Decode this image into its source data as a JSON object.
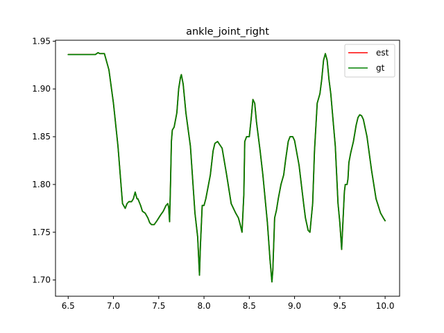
{
  "chart_data": {
    "type": "line",
    "title": "ankle_joint_right",
    "xlabel": "",
    "ylabel": "",
    "xlim": [
      6.36,
      10.16
    ],
    "ylim": [
      1.683,
      1.951
    ],
    "xticks": [
      6.5,
      7.0,
      7.5,
      8.0,
      8.5,
      9.0,
      9.5,
      10.0
    ],
    "xtick_labels": [
      "6.5",
      "7.0",
      "7.5",
      "8.0",
      "8.5",
      "9.0",
      "9.5",
      "10.0"
    ],
    "yticks": [
      1.7,
      1.75,
      1.8,
      1.85,
      1.9,
      1.95
    ],
    "ytick_labels": [
      "1.70",
      "1.75",
      "1.80",
      "1.85",
      "1.90",
      "1.95"
    ],
    "grid": false,
    "legend": {
      "position": "top-right"
    },
    "series": [
      {
        "name": "est",
        "color": "#ff0000",
        "x": [
          6.5,
          6.6,
          6.7,
          6.8,
          6.83,
          6.85,
          6.9,
          6.95,
          7.0,
          7.05,
          7.1,
          7.13,
          7.15,
          7.17,
          7.2,
          7.22,
          7.24,
          7.26,
          7.27,
          7.3,
          7.32,
          7.35,
          7.38,
          7.4,
          7.42,
          7.45,
          7.48,
          7.5,
          7.52,
          7.55,
          7.58,
          7.6,
          7.61,
          7.62,
          7.63,
          7.64,
          7.65,
          7.67,
          7.7,
          7.72,
          7.74,
          7.75,
          7.77,
          7.8,
          7.85,
          7.9,
          7.93,
          7.95,
          7.96,
          7.98,
          8.0,
          8.02,
          8.05,
          8.07,
          8.1,
          8.12,
          8.15,
          8.2,
          8.25,
          8.3,
          8.35,
          8.38,
          8.4,
          8.42,
          8.44,
          8.45,
          8.47,
          8.5,
          8.52,
          8.54,
          8.56,
          8.58,
          8.6,
          8.62,
          8.65,
          8.7,
          8.73,
          8.75,
          8.76,
          8.78,
          8.8,
          8.82,
          8.85,
          8.88,
          8.9,
          8.93,
          8.95,
          8.98,
          9.0,
          9.05,
          9.1,
          9.12,
          9.15,
          9.17,
          9.2,
          9.22,
          9.25,
          9.28,
          9.3,
          9.32,
          9.34,
          9.36,
          9.38,
          9.4,
          9.45,
          9.48,
          9.5,
          9.52,
          9.54,
          9.55,
          9.56,
          9.57,
          9.58,
          9.59,
          9.6,
          9.62,
          9.65,
          9.68,
          9.7,
          9.72,
          9.74,
          9.76,
          9.8,
          9.85,
          9.9,
          9.95,
          9.98,
          10.0
        ],
        "y": [
          1.936,
          1.936,
          1.936,
          1.936,
          1.938,
          1.937,
          1.937,
          1.92,
          1.885,
          1.84,
          1.78,
          1.775,
          1.78,
          1.782,
          1.782,
          1.785,
          1.792,
          1.785,
          1.785,
          1.778,
          1.772,
          1.77,
          1.765,
          1.76,
          1.758,
          1.758,
          1.762,
          1.765,
          1.768,
          1.772,
          1.778,
          1.78,
          1.776,
          1.761,
          1.8,
          1.845,
          1.857,
          1.86,
          1.875,
          1.9,
          1.912,
          1.915,
          1.905,
          1.875,
          1.84,
          1.77,
          1.745,
          1.705,
          1.735,
          1.778,
          1.778,
          1.785,
          1.8,
          1.81,
          1.835,
          1.843,
          1.845,
          1.838,
          1.81,
          1.78,
          1.77,
          1.765,
          1.758,
          1.75,
          1.79,
          1.845,
          1.85,
          1.85,
          1.868,
          1.889,
          1.885,
          1.865,
          1.85,
          1.835,
          1.81,
          1.76,
          1.72,
          1.698,
          1.71,
          1.765,
          1.773,
          1.785,
          1.8,
          1.81,
          1.825,
          1.845,
          1.85,
          1.85,
          1.846,
          1.82,
          1.78,
          1.765,
          1.752,
          1.75,
          1.78,
          1.835,
          1.885,
          1.895,
          1.91,
          1.93,
          1.937,
          1.93,
          1.91,
          1.895,
          1.84,
          1.78,
          1.76,
          1.732,
          1.772,
          1.792,
          1.8,
          1.8,
          1.8,
          1.806,
          1.823,
          1.833,
          1.845,
          1.862,
          1.87,
          1.873,
          1.872,
          1.868,
          1.85,
          1.815,
          1.785,
          1.77,
          1.765,
          1.762
        ]
      },
      {
        "name": "gt",
        "color": "#008000",
        "x": [
          6.5,
          6.6,
          6.7,
          6.8,
          6.83,
          6.85,
          6.9,
          6.95,
          7.0,
          7.05,
          7.1,
          7.13,
          7.15,
          7.17,
          7.2,
          7.22,
          7.24,
          7.26,
          7.27,
          7.3,
          7.32,
          7.35,
          7.38,
          7.4,
          7.42,
          7.45,
          7.48,
          7.5,
          7.52,
          7.55,
          7.58,
          7.6,
          7.61,
          7.62,
          7.63,
          7.64,
          7.65,
          7.67,
          7.7,
          7.72,
          7.74,
          7.75,
          7.77,
          7.8,
          7.85,
          7.9,
          7.93,
          7.95,
          7.96,
          7.98,
          8.0,
          8.02,
          8.05,
          8.07,
          8.1,
          8.12,
          8.15,
          8.2,
          8.25,
          8.3,
          8.35,
          8.38,
          8.4,
          8.42,
          8.44,
          8.45,
          8.47,
          8.5,
          8.52,
          8.54,
          8.56,
          8.58,
          8.6,
          8.62,
          8.65,
          8.7,
          8.73,
          8.75,
          8.76,
          8.78,
          8.8,
          8.82,
          8.85,
          8.88,
          8.9,
          8.93,
          8.95,
          8.98,
          9.0,
          9.05,
          9.1,
          9.12,
          9.15,
          9.17,
          9.2,
          9.22,
          9.25,
          9.28,
          9.3,
          9.32,
          9.34,
          9.36,
          9.38,
          9.4,
          9.45,
          9.48,
          9.5,
          9.52,
          9.54,
          9.55,
          9.56,
          9.57,
          9.58,
          9.59,
          9.6,
          9.62,
          9.65,
          9.68,
          9.7,
          9.72,
          9.74,
          9.76,
          9.8,
          9.85,
          9.9,
          9.95,
          9.98,
          10.0
        ],
        "y": [
          1.936,
          1.936,
          1.936,
          1.936,
          1.938,
          1.937,
          1.937,
          1.92,
          1.885,
          1.84,
          1.78,
          1.775,
          1.78,
          1.782,
          1.782,
          1.785,
          1.792,
          1.785,
          1.785,
          1.778,
          1.772,
          1.77,
          1.765,
          1.76,
          1.758,
          1.758,
          1.762,
          1.765,
          1.768,
          1.772,
          1.778,
          1.78,
          1.776,
          1.761,
          1.8,
          1.845,
          1.857,
          1.86,
          1.875,
          1.9,
          1.912,
          1.915,
          1.905,
          1.875,
          1.84,
          1.77,
          1.745,
          1.705,
          1.735,
          1.778,
          1.778,
          1.785,
          1.8,
          1.81,
          1.835,
          1.843,
          1.845,
          1.838,
          1.81,
          1.78,
          1.77,
          1.765,
          1.758,
          1.75,
          1.79,
          1.845,
          1.85,
          1.85,
          1.868,
          1.889,
          1.885,
          1.865,
          1.85,
          1.835,
          1.81,
          1.76,
          1.72,
          1.698,
          1.71,
          1.765,
          1.773,
          1.785,
          1.8,
          1.81,
          1.825,
          1.845,
          1.85,
          1.85,
          1.846,
          1.82,
          1.78,
          1.765,
          1.752,
          1.75,
          1.78,
          1.835,
          1.885,
          1.895,
          1.91,
          1.93,
          1.937,
          1.93,
          1.91,
          1.895,
          1.84,
          1.78,
          1.76,
          1.732,
          1.772,
          1.792,
          1.8,
          1.8,
          1.8,
          1.806,
          1.823,
          1.833,
          1.845,
          1.862,
          1.87,
          1.873,
          1.872,
          1.868,
          1.85,
          1.815,
          1.785,
          1.77,
          1.765,
          1.762
        ]
      }
    ]
  }
}
